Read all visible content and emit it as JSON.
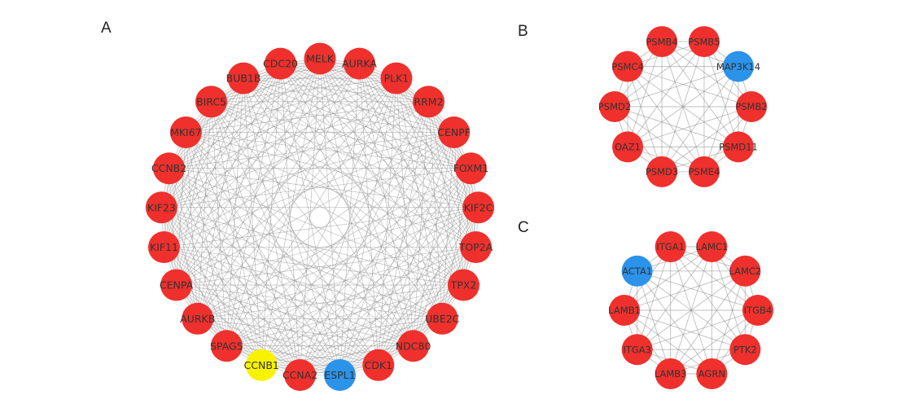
{
  "figure": {
    "panels": [
      {
        "label": "A",
        "nodes": [
          {
            "name": "MELK",
            "color": "red"
          },
          {
            "name": "AURKA",
            "color": "red"
          },
          {
            "name": "PLK1",
            "color": "red"
          },
          {
            "name": "RRM2",
            "color": "red"
          },
          {
            "name": "CENPF",
            "color": "red"
          },
          {
            "name": "FOXM1",
            "color": "red"
          },
          {
            "name": "KIF2C",
            "color": "red"
          },
          {
            "name": "TOP2A",
            "color": "red"
          },
          {
            "name": "TPX2",
            "color": "red"
          },
          {
            "name": "UBE2C",
            "color": "red"
          },
          {
            "name": "NDC80",
            "color": "red"
          },
          {
            "name": "CDK1",
            "color": "red"
          },
          {
            "name": "ESPL1",
            "color": "blue"
          },
          {
            "name": "CCNA2",
            "color": "red"
          },
          {
            "name": "CCNB1",
            "color": "yellow"
          },
          {
            "name": "SPAG5",
            "color": "red"
          },
          {
            "name": "AURKB",
            "color": "red"
          },
          {
            "name": "CENPA",
            "color": "red"
          },
          {
            "name": "KIF11",
            "color": "red"
          },
          {
            "name": "KIF23",
            "color": "red"
          },
          {
            "name": "CCNB2",
            "color": "red"
          },
          {
            "name": "MKI67",
            "color": "red"
          },
          {
            "name": "BIRC5",
            "color": "red"
          },
          {
            "name": "BUB1B",
            "color": "red"
          },
          {
            "name": "CDC20",
            "color": "red"
          }
        ]
      },
      {
        "label": "B",
        "nodes": [
          {
            "name": "PSMB5",
            "color": "red"
          },
          {
            "name": "MAP3K14",
            "color": "blue"
          },
          {
            "name": "PSMB2",
            "color": "red"
          },
          {
            "name": "PSMD11",
            "color": "red"
          },
          {
            "name": "PSME4",
            "color": "red"
          },
          {
            "name": "PSMD3",
            "color": "red"
          },
          {
            "name": "OAZ1",
            "color": "red"
          },
          {
            "name": "PSMD2",
            "color": "red"
          },
          {
            "name": "PSMC4",
            "color": "red"
          },
          {
            "name": "PSMB4",
            "color": "red"
          }
        ]
      },
      {
        "label": "C",
        "nodes": [
          {
            "name": "LAMC1",
            "color": "red"
          },
          {
            "name": "LAMC2",
            "color": "red"
          },
          {
            "name": "ITGB4",
            "color": "red"
          },
          {
            "name": "PTK2",
            "color": "red"
          },
          {
            "name": "AGRN",
            "color": "red"
          },
          {
            "name": "LAMB3",
            "color": "red"
          },
          {
            "name": "ITGA3",
            "color": "red"
          },
          {
            "name": "LAMB1",
            "color": "red"
          },
          {
            "name": "ACTA1",
            "color": "blue"
          },
          {
            "name": "ITGA1",
            "color": "red"
          }
        ]
      }
    ],
    "colors": {
      "red": "#f0302c",
      "blue": "#2b93ea",
      "yellow": "#f8f200",
      "edge": "#8a8a8a"
    }
  }
}
